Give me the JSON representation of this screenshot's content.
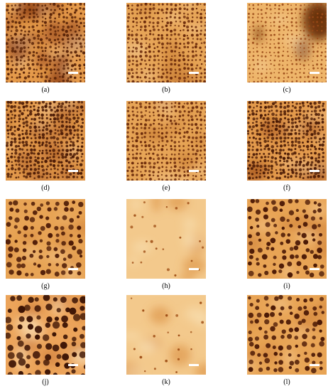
{
  "figure": {
    "panels": [
      {
        "label": "(a)",
        "pattern": "dense-dark-patches"
      },
      {
        "label": "(b)",
        "pattern": "dense-pores"
      },
      {
        "label": "(c)",
        "pattern": "faint-pores-dark-corner"
      },
      {
        "label": "(d)",
        "pattern": "dense-dark-pores"
      },
      {
        "label": "(e)",
        "pattern": "dense-pores"
      },
      {
        "label": "(f)",
        "pattern": "dense-dark-pores"
      },
      {
        "label": "(g)",
        "pattern": "large-pores"
      },
      {
        "label": "(h)",
        "pattern": "sparse-pores-smooth"
      },
      {
        "label": "(i)",
        "pattern": "large-pores"
      },
      {
        "label": "(j)",
        "pattern": "blobby-large-pores"
      },
      {
        "label": "(k)",
        "pattern": "sparse-pores-smooth"
      },
      {
        "label": "(l)",
        "pattern": "large-pores"
      }
    ]
  }
}
